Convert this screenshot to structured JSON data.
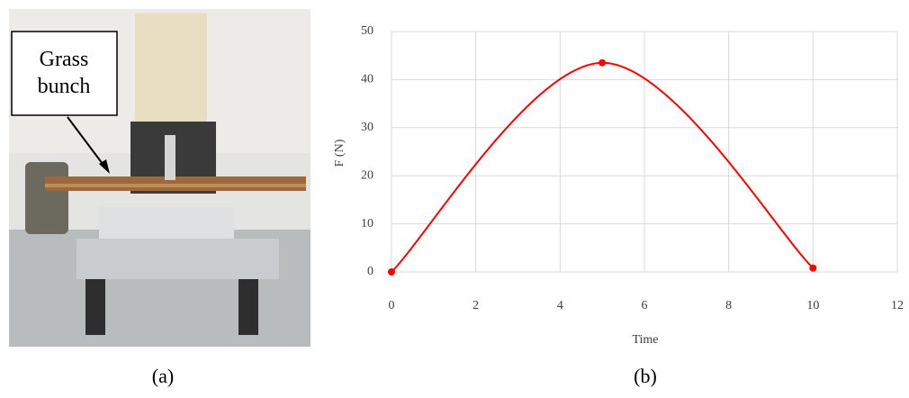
{
  "figure": {
    "photo_label": "Grass bunch",
    "caption_a": "(a)",
    "caption_b": "(b)"
  },
  "chart_data": {
    "type": "line",
    "x_label": "Time",
    "y_label": "F (N)",
    "x": [
      0,
      5,
      10
    ],
    "series": [
      {
        "color": "#ff0000",
        "values": [
          0,
          43.5,
          0.8
        ]
      }
    ],
    "xlim": [
      0,
      12
    ],
    "xticks": [
      0,
      2,
      4,
      6,
      8,
      10,
      12
    ],
    "ylim": [
      0,
      50
    ],
    "yticks": [
      0,
      10,
      20,
      30,
      40,
      50
    ],
    "grid": true,
    "smooth": true,
    "markers": true
  }
}
